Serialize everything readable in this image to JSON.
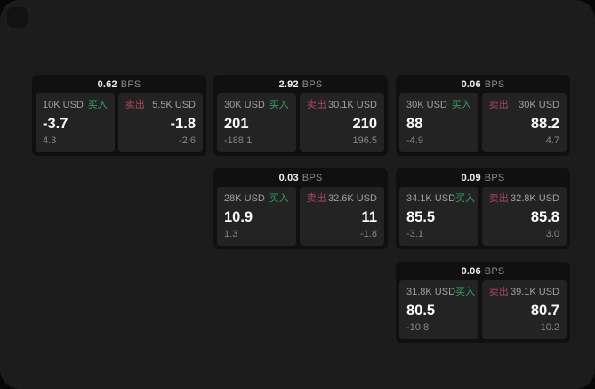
{
  "labels": {
    "buy": "买入",
    "sell": "卖出",
    "bps_unit": "BPS"
  },
  "colors": {
    "page_background": "#1c1c1c",
    "card_background": "#101010",
    "panel_background": "#232323",
    "buy_green": "#31a763",
    "sell_red": "#b4455e"
  },
  "cards": [
    {
      "bps": "0.62",
      "buy": {
        "amount": "10K USD",
        "price": "-3.7",
        "delta": "4.3"
      },
      "sell": {
        "amount": "5.5K USD",
        "price": "-1.8",
        "delta": "-2.6"
      }
    },
    {
      "bps": "2.92",
      "buy": {
        "amount": "30K USD",
        "price": "201",
        "delta": "-188.1"
      },
      "sell": {
        "amount": "30.1K USD",
        "price": "210",
        "delta": "196.5"
      }
    },
    {
      "bps": "0.06",
      "buy": {
        "amount": "30K USD",
        "price": "88",
        "delta": "-4.9"
      },
      "sell": {
        "amount": "30K USD",
        "price": "88.2",
        "delta": "4.7"
      }
    },
    {
      "bps": "0.03",
      "buy": {
        "amount": "28K USD",
        "price": "10.9",
        "delta": "1.3"
      },
      "sell": {
        "amount": "32.6K USD",
        "price": "11",
        "delta": "-1.8"
      }
    },
    {
      "bps": "0.09",
      "buy": {
        "amount": "34.1K USD",
        "price": "85.5",
        "delta": "-3.1"
      },
      "sell": {
        "amount": "32.8K USD",
        "price": "85.8",
        "delta": "3.0"
      }
    },
    {
      "bps": "0.06",
      "buy": {
        "amount": "31.8K USD",
        "price": "80.5",
        "delta": "-10.8"
      },
      "sell": {
        "amount": "39.1K USD",
        "price": "80.7",
        "delta": "10.2"
      }
    }
  ]
}
